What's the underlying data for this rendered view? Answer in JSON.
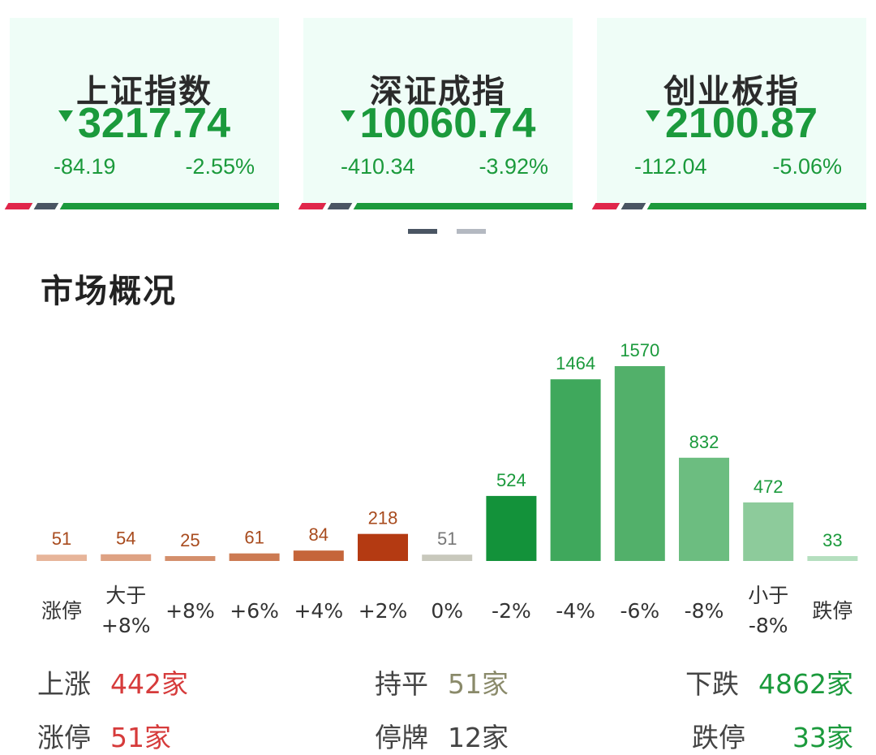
{
  "indices": [
    {
      "name": "上证指数",
      "value": "3217.74",
      "change": "-84.19",
      "pct": "-2.55%"
    },
    {
      "name": "深证成指",
      "value": "10060.74",
      "change": "-410.34",
      "pct": "-3.92%"
    },
    {
      "name": "创业板指",
      "value": "2100.87",
      "change": "-112.04",
      "pct": "-5.06%"
    }
  ],
  "section_title": "市场概况",
  "chart_data": {
    "type": "bar",
    "categories": [
      "涨停",
      "大于\n+8%",
      "+8%",
      "+6%",
      "+4%",
      "+2%",
      "0%",
      "-2%",
      "-4%",
      "-6%",
      "-8%",
      "小于\n-8%",
      "跌停"
    ],
    "values": [
      51,
      54,
      25,
      61,
      84,
      218,
      51,
      524,
      1464,
      1570,
      832,
      472,
      33
    ],
    "colors": [
      "#e7b59a",
      "#dea283",
      "#d48f6c",
      "#cc7a52",
      "#c5653a",
      "#b43a12",
      "#c8c8bc",
      "#13923a",
      "#3fa85c",
      "#52b06a",
      "#6cbd80",
      "#8dcb9b",
      "#b5dfbf"
    ],
    "label_colors": [
      "#a84b1e",
      "#a84b1e",
      "#a84b1e",
      "#a84b1e",
      "#a84b1e",
      "#a84b1e",
      "#777777",
      "#1b9a3c",
      "#1b9a3c",
      "#1b9a3c",
      "#1b9a3c",
      "#1b9a3c",
      "#1b9a3c"
    ],
    "ylim": [
      0,
      1570
    ],
    "grid": false
  },
  "stats": {
    "up": {
      "label": "上涨",
      "value": "442家"
    },
    "flat": {
      "label": "持平",
      "value": "51家"
    },
    "down": {
      "label": "下跌",
      "value": "4862家"
    },
    "limit_up": {
      "label": "涨停",
      "value": "51家"
    },
    "suspended": {
      "label": "停牌",
      "value": "12家"
    },
    "limit_down": {
      "label": "跌停",
      "value": "33家"
    }
  },
  "colors": {
    "up": "#d63b3b",
    "down": "#1b9a3c",
    "flat": "#8a8a6a",
    "card_bg": "#effdf7"
  }
}
